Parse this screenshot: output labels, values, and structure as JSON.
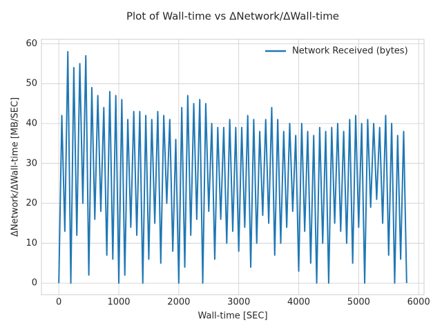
{
  "chart_data": {
    "type": "line",
    "title": "Plot of Wall-time vs ΔNetwork/ΔWall-time",
    "xlabel": "Wall-time [SEC]",
    "ylabel": "ΔNetwork/ΔWall-time [MB/SEC]",
    "xlim": [
      -290,
      6090
    ],
    "ylim": [
      -2.9,
      61.1
    ],
    "xticks": [
      0,
      1000,
      2000,
      3000,
      4000,
      5000,
      6000
    ],
    "yticks": [
      0,
      10,
      20,
      30,
      40,
      50,
      60
    ],
    "grid": true,
    "legend": "upper right",
    "x": [
      0,
      50,
      100,
      150,
      200,
      250,
      300,
      350,
      400,
      450,
      500,
      550,
      600,
      650,
      700,
      750,
      800,
      850,
      900,
      950,
      1000,
      1050,
      1100,
      1150,
      1200,
      1250,
      1300,
      1350,
      1400,
      1450,
      1500,
      1550,
      1600,
      1650,
      1700,
      1750,
      1800,
      1850,
      1900,
      1950,
      2000,
      2050,
      2100,
      2150,
      2200,
      2250,
      2300,
      2350,
      2400,
      2450,
      2500,
      2550,
      2600,
      2650,
      2700,
      2750,
      2800,
      2850,
      2900,
      2950,
      3000,
      3050,
      3100,
      3150,
      3200,
      3250,
      3300,
      3350,
      3400,
      3450,
      3500,
      3550,
      3600,
      3650,
      3700,
      3750,
      3800,
      3850,
      3900,
      3950,
      4000,
      4050,
      4100,
      4150,
      4200,
      4250,
      4300,
      4350,
      4400,
      4450,
      4500,
      4550,
      4600,
      4650,
      4700,
      4750,
      4800,
      4850,
      4900,
      4950,
      5000,
      5050,
      5100,
      5150,
      5200,
      5250,
      5300,
      5350,
      5400,
      5450,
      5500,
      5550,
      5600,
      5650,
      5700,
      5750,
      5800
    ],
    "series": [
      {
        "name": "Network Received (bytes)",
        "color": "#1f77b4",
        "values": [
          0,
          42,
          13,
          58,
          0,
          54,
          12,
          55,
          20,
          57,
          2,
          49,
          16,
          47,
          18,
          44,
          7,
          48,
          6,
          47,
          0,
          46,
          2,
          41,
          14,
          43,
          12,
          43,
          0,
          42,
          6,
          41,
          15,
          43,
          5,
          42,
          20,
          41,
          8,
          36,
          0,
          44,
          4,
          47,
          12,
          45,
          16,
          46,
          0,
          45,
          18,
          40,
          6,
          39,
          16,
          39,
          10,
          41,
          13,
          39,
          8,
          39,
          14,
          42,
          4,
          41,
          10,
          38,
          17,
          41,
          15,
          44,
          7,
          41,
          10,
          38,
          14,
          40,
          18,
          37,
          3,
          40,
          13,
          38,
          5,
          37,
          0,
          39,
          10,
          38,
          0,
          39,
          15,
          40,
          13,
          38,
          10,
          41,
          5,
          42,
          14,
          40,
          0,
          41,
          19,
          40,
          21,
          39,
          15,
          42,
          7,
          40,
          0,
          37,
          6,
          38,
          0
        ]
      }
    ]
  }
}
